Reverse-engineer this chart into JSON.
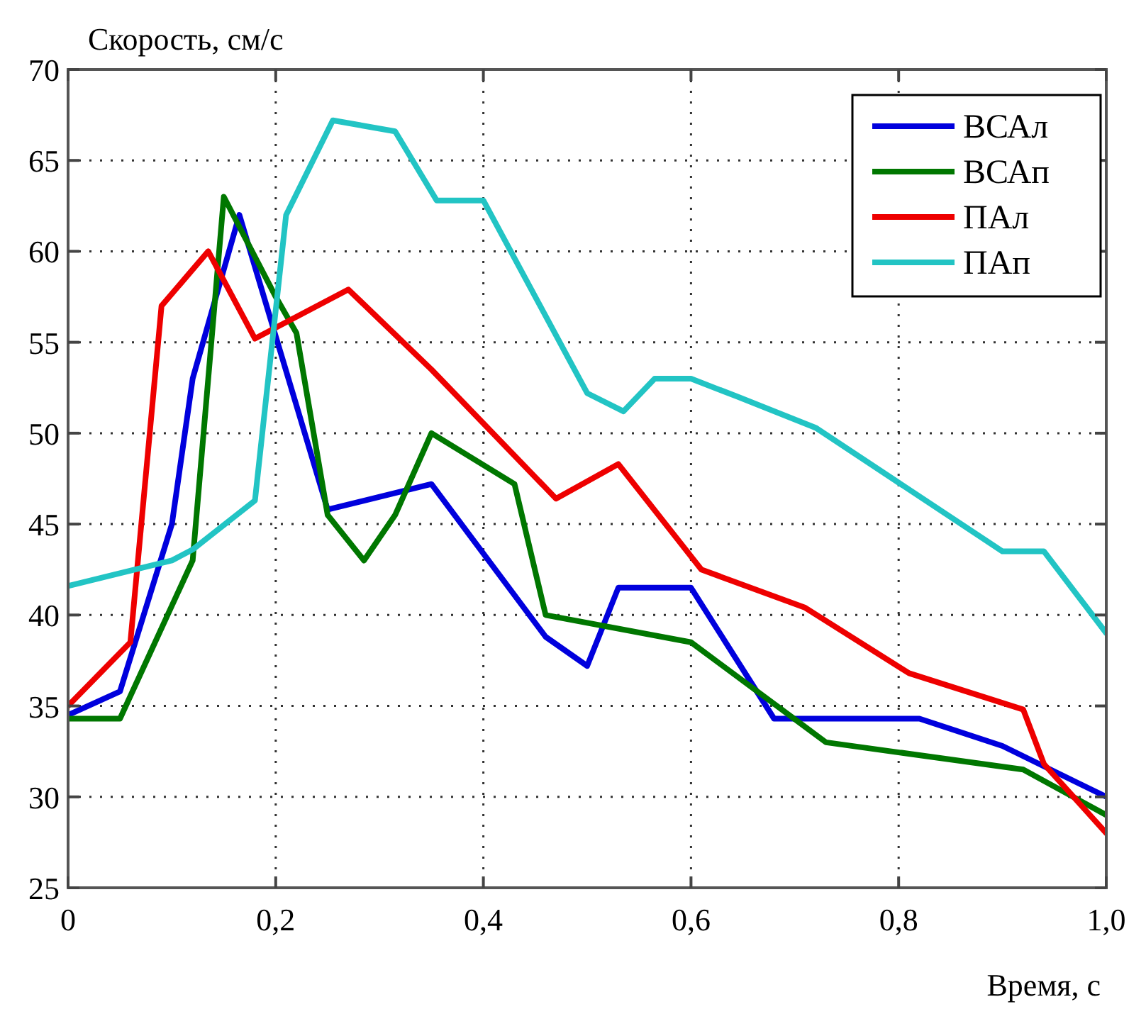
{
  "chart_data": {
    "type": "line",
    "xlabel": "Время, с",
    "ylabel": "Скорость, см/с",
    "xlim": [
      0,
      1
    ],
    "ylim": [
      25,
      70
    ],
    "xticks": [
      0,
      {
        "value": 0.2,
        "label": "0,2"
      },
      {
        "value": 0.4,
        "label": "0,4"
      },
      {
        "value": 0.6,
        "label": "0,6"
      },
      {
        "value": 0.8,
        "label": "0,8"
      },
      {
        "value": 1,
        "label": "1,0"
      }
    ],
    "yticks": [
      25,
      30,
      35,
      40,
      45,
      50,
      55,
      60,
      65,
      70
    ],
    "grid": true,
    "legend": "top right",
    "line_style": "solid",
    "marker": "none",
    "series": [
      {
        "name": "ВСАл",
        "color": "#0000dd",
        "x": [
          0,
          0.05,
          0.1,
          0.12,
          0.165,
          0.25,
          0.35,
          0.46,
          0.5,
          0.53,
          0.6,
          0.68,
          0.82,
          0.9,
          1.0
        ],
        "values": [
          34.5,
          35.8,
          45,
          53,
          62,
          45.8,
          47.2,
          38.8,
          37.2,
          41.5,
          41.5,
          34.3,
          34.3,
          32.8,
          30
        ]
      },
      {
        "name": "ВСАп",
        "color": "#007700",
        "x": [
          0,
          0.05,
          0.12,
          0.15,
          0.2,
          0.22,
          0.25,
          0.285,
          0.315,
          0.35,
          0.43,
          0.46,
          0.6,
          0.73,
          0.92,
          1.0
        ],
        "values": [
          34.3,
          34.3,
          43,
          63,
          57.5,
          55.5,
          45.5,
          43,
          45.5,
          50,
          47.2,
          40,
          38.5,
          33,
          31.5,
          29
        ]
      },
      {
        "name": "ПАл",
        "color": "#ee0000",
        "x": [
          0,
          0.06,
          0.09,
          0.135,
          0.18,
          0.27,
          0.35,
          0.47,
          0.53,
          0.61,
          0.71,
          0.81,
          0.92,
          0.94,
          1.0
        ],
        "values": [
          35,
          38.5,
          57,
          60,
          55.2,
          57.9,
          53.5,
          46.4,
          48.3,
          42.5,
          40.4,
          36.8,
          34.8,
          31.8,
          28
        ]
      },
      {
        "name": "ПАп",
        "color": "#22c4c4",
        "x": [
          0,
          0.1,
          0.12,
          0.18,
          0.21,
          0.255,
          0.315,
          0.355,
          0.4,
          0.5,
          0.535,
          0.565,
          0.6,
          0.645,
          0.72,
          0.9,
          0.94,
          1.0
        ],
        "values": [
          41.6,
          43,
          43.6,
          46.3,
          62,
          67.2,
          66.6,
          62.8,
          62.8,
          52.2,
          51.2,
          53,
          53,
          52,
          50.3,
          43.5,
          43.5,
          39
        ]
      }
    ]
  }
}
